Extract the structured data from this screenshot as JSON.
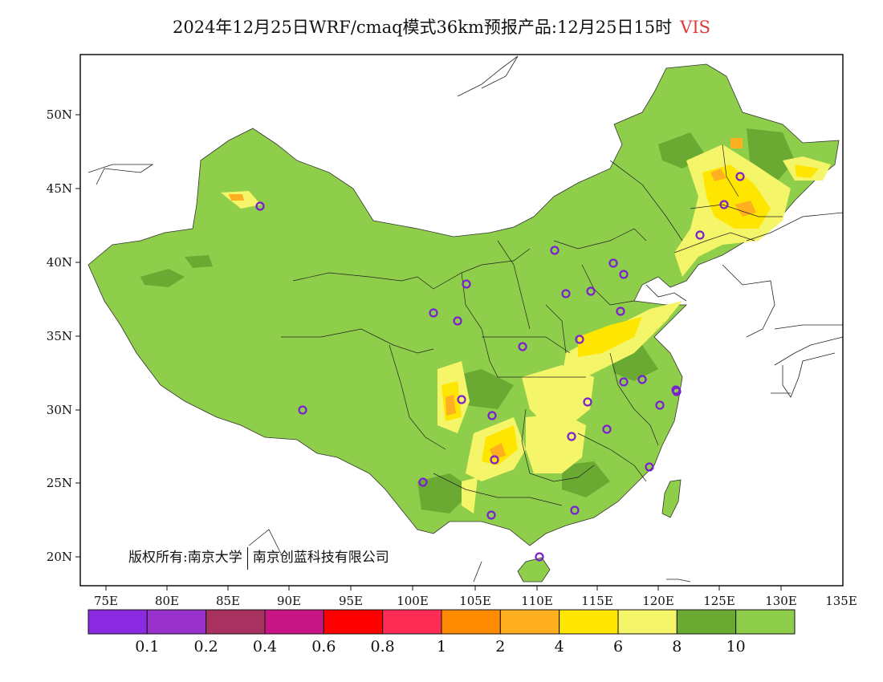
{
  "title": "2024年12月25日WRF/cmaq模式36km预报产品:12月25日15时",
  "variable": "VIS",
  "copyright_left": "版权所有:南京大学",
  "copyright_right": "南京创蓝科技有限公司",
  "lat_labels": [
    "50N",
    "45N",
    "40N",
    "35N",
    "30N",
    "25N",
    "20N"
  ],
  "lon_labels": [
    "75E",
    "80E",
    "85E",
    "90E",
    "95E",
    "100E",
    "105E",
    "110E",
    "115E",
    "120E",
    "125E",
    "130E",
    "135E"
  ],
  "colorbar": {
    "colors": [
      "#8a2be2",
      "#9932cc",
      "#a8325f",
      "#c71585",
      "#ff0000",
      "#ff2d55",
      "#ff8c00",
      "#ffb020",
      "#ffe600",
      "#f5f56a",
      "#6aaa32",
      "#8fce4a"
    ],
    "tick_labels": [
      "0.1",
      "0.2",
      "0.4",
      "0.6",
      "0.8",
      "1",
      "2",
      "4",
      "6",
      "8",
      "10"
    ]
  },
  "colors": {
    "land_base": "#8fce4a",
    "land_dark": "#6aaa32",
    "haze_light": "#f5f56a",
    "haze_mid": "#ffe600",
    "haze_orange": "#ffb020",
    "station": "#7b1fd2",
    "title_var": "#e03a3a"
  },
  "station_markers": 33
}
